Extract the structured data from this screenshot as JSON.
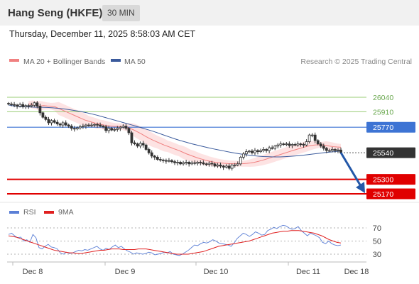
{
  "header": {
    "title": "Hang Seng (HKFE)",
    "interval": "30 MIN",
    "datetime": "Thursday, December 11, 2025 8:58:03 AM CET"
  },
  "legend": {
    "ma20_label": "MA 20 + Bollinger Bands",
    "ma50_label": "MA 50",
    "copyright": "Research © 2025 Trading Central",
    "rsi_label": "RSI",
    "rsi_ma_label": "9MA"
  },
  "colors": {
    "ma20": "#f08080",
    "ma50": "#3a5a9c",
    "bollinger_fill": "#fde0e0",
    "candle": "#333333",
    "support": "#e00000",
    "resistance_green": "#9acd75",
    "pivot_blue": "#3d74d4",
    "last_price_box": "#333333",
    "arrow": "#2458a8",
    "rsi": "#5b7fd6",
    "rsi_ma": "#e02020"
  },
  "chart_data": {
    "type": "candlestick",
    "price_levels": [
      {
        "value": 26040,
        "label": "26040",
        "kind": "resistance"
      },
      {
        "value": 25910,
        "label": "25910",
        "kind": "resistance"
      },
      {
        "value": 25770,
        "label": "25770",
        "kind": "pivot"
      },
      {
        "value": 25540,
        "label": "25540",
        "kind": "last"
      },
      {
        "value": 25300,
        "label": "25300",
        "kind": "support"
      },
      {
        "value": 25170,
        "label": "25170",
        "kind": "support"
      }
    ],
    "x_tick_labels": [
      "Dec 8",
      "Dec 9",
      "Dec 10",
      "Dec 11",
      "Dec 18"
    ],
    "close": [
      25980,
      25975,
      25970,
      25960,
      25975,
      25955,
      25965,
      25960,
      25968,
      25990,
      25960,
      25900,
      25860,
      25840,
      25810,
      25830,
      25815,
      25800,
      25790,
      25810,
      25790,
      25780,
      25760,
      25755,
      25765,
      25775,
      25780,
      25790,
      25785,
      25790,
      25795,
      25790,
      25780,
      25775,
      25740,
      25760,
      25745,
      25750,
      25760,
      25770,
      25780,
      25760,
      25720,
      25630,
      25620,
      25600,
      25625,
      25610,
      25570,
      25540,
      25510,
      25500,
      25480,
      25475,
      25470,
      25465,
      25470,
      25460,
      25450,
      25455,
      25440,
      25450,
      25455,
      25440,
      25450,
      25445,
      25455,
      25450,
      25440,
      25435,
      25445,
      25440,
      25420,
      25430,
      25420,
      25410,
      25420,
      25400,
      25430,
      25430,
      25440,
      25500,
      25530,
      25550,
      25555,
      25540,
      25560,
      25550,
      25560,
      25570,
      25560,
      25585,
      25580,
      25600,
      25610,
      25620,
      25615,
      25620,
      25605,
      25615,
      25610,
      25620,
      25615,
      25610,
      25640,
      25700,
      25700,
      25650,
      25620,
      25600,
      25580,
      25560,
      25560,
      25570,
      25560,
      25565,
      25540
    ],
    "ma20": [
      25980,
      25975,
      25970,
      25960,
      25965,
      25962,
      25960,
      25955,
      25940,
      25925,
      25910,
      25895,
      25880,
      25865,
      25850,
      25835,
      25825,
      25815,
      25805,
      25798,
      25790,
      25784,
      25780,
      25778,
      25776,
      25774,
      25770,
      25760,
      25745,
      25728,
      25710,
      25690,
      25672,
      25655,
      25640,
      25625,
      25610,
      25598,
      25585,
      25572,
      25560,
      25545,
      25530,
      25518,
      25505,
      25493,
      25483,
      25473,
      25465,
      25458,
      25452,
      25448,
      25445,
      25443,
      25442,
      25441,
      25441,
      25442,
      25444,
      25448,
      25454,
      25462,
      25471,
      25481,
      25492,
      25503,
      25514,
      25525,
      25536,
      25547,
      25558,
      25568,
      25578,
      25588,
      25598,
      25605,
      25610,
      25612,
      25612,
      25606,
      25600,
      25595,
      25592,
      25590
    ],
    "ma50": [
      25970,
      25962,
      25956,
      25954,
      25952,
      25950,
      25950,
      25948,
      25945,
      25940,
      25935,
      25928,
      25920,
      25912,
      25902,
      25890,
      25878,
      25864,
      25850,
      25836,
      25822,
      25808,
      25794,
      25780,
      25765,
      25750,
      25735,
      25718,
      25700,
      25683,
      25666,
      25650,
      25636,
      25622,
      25610,
      25598,
      25586,
      25575,
      25565,
      25555,
      25545,
      25536,
      25528,
      25521,
      25515,
      25510,
      25506,
      25504,
      25503,
      25503,
      25505,
      25508,
      25512,
      25517,
      25523,
      25529,
      25535,
      25541,
      25546,
      25551,
      25556
    ],
    "rsi": [
      60,
      62,
      58,
      55,
      56,
      50,
      52,
      48,
      60,
      55,
      40,
      38,
      42,
      45,
      41,
      40,
      38,
      32,
      30,
      33,
      31,
      32,
      34,
      36,
      35,
      37,
      36,
      38,
      40,
      42,
      38,
      36,
      39,
      37,
      41,
      44,
      40,
      42,
      38,
      35,
      33,
      30,
      32,
      31,
      30,
      31,
      33,
      32,
      29,
      30,
      31,
      33,
      32,
      34,
      30,
      29,
      28,
      30,
      33,
      36,
      40,
      44,
      43,
      46,
      48,
      47,
      49,
      52,
      50,
      47,
      46,
      45,
      44,
      42,
      47,
      54,
      58,
      62,
      60,
      57,
      60,
      64,
      62,
      59,
      60,
      66,
      68,
      71,
      69,
      72,
      74,
      73,
      70,
      68,
      69,
      72,
      66,
      62,
      58,
      62,
      60,
      58,
      55,
      48,
      46,
      50,
      46,
      44,
      43,
      44
    ],
    "rsi_ma": [
      58,
      57,
      56,
      54,
      52,
      50,
      48,
      46,
      44,
      42,
      40,
      38,
      36,
      35,
      34,
      33,
      32,
      32,
      31,
      31,
      32,
      33,
      34,
      35,
      36,
      36,
      37,
      38,
      38,
      38,
      37,
      37,
      37,
      37,
      38,
      38,
      38,
      37,
      36,
      35,
      34,
      33,
      32,
      31,
      30,
      30,
      30,
      30,
      31,
      32,
      33,
      34,
      36,
      38,
      40,
      42,
      43,
      44,
      45,
      46,
      47,
      48,
      49,
      50,
      52,
      54,
      56,
      58,
      60,
      62,
      63,
      64,
      65,
      65,
      66,
      66,
      66,
      65,
      64,
      63,
      62,
      60,
      58,
      55,
      52,
      50,
      48,
      47
    ],
    "rsi_ticks": [
      70,
      50,
      30
    ],
    "price_axis_range": [
      25050,
      26200
    ],
    "rsi_range": [
      20,
      80
    ]
  }
}
